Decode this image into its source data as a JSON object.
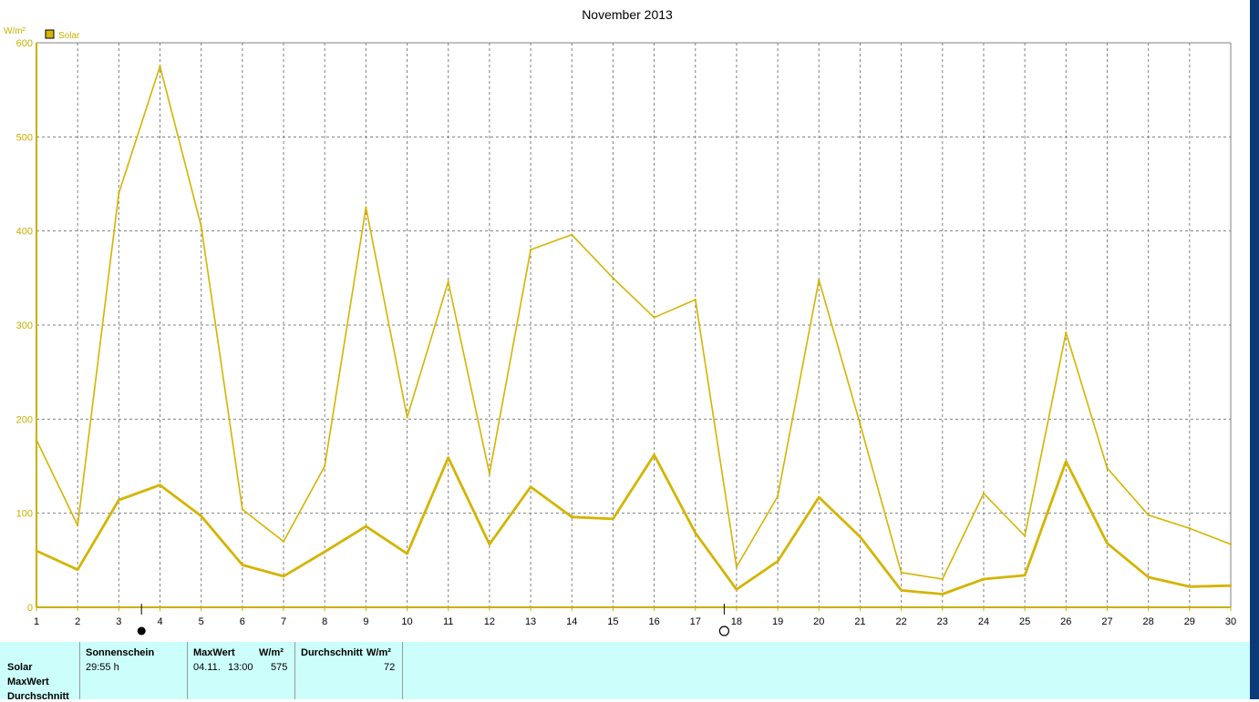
{
  "colors": {
    "series": "#d4b400",
    "axis": "#c8b000",
    "grid": "#808080",
    "summary_bg": "#ccfffb",
    "right_strip": "#0b3a78"
  },
  "chart_data": {
    "type": "line",
    "title": "November 2013",
    "ylabel": "W/m²",
    "legend": {
      "label": "Solar",
      "position": "top-left"
    },
    "ylim": [
      0,
      600
    ],
    "y_ticks": [
      "0",
      "100",
      "200",
      "300",
      "400",
      "500",
      "600"
    ],
    "x": [
      1,
      2,
      3,
      4,
      5,
      6,
      7,
      8,
      9,
      10,
      11,
      12,
      13,
      14,
      15,
      16,
      17,
      18,
      19,
      20,
      21,
      22,
      23,
      24,
      25,
      26,
      27,
      28,
      29,
      30
    ],
    "x_tick_labels": [
      "1",
      "2",
      "3",
      "4",
      "5",
      "6",
      "7",
      "8",
      "9",
      "10",
      "11",
      "12",
      "13",
      "14",
      "15",
      "16",
      "17",
      "18",
      "19",
      "20",
      "21",
      "22",
      "23",
      "24",
      "25",
      "26",
      "27",
      "28",
      "29",
      "30"
    ],
    "grid": true,
    "series": [
      {
        "name": "Solar",
        "values": [
          178,
          87,
          440,
          575,
          405,
          104,
          70,
          150,
          425,
          202,
          346,
          142,
          380,
          396,
          350,
          308,
          327,
          43,
          118,
          348,
          195,
          37,
          30,
          121,
          76,
          292,
          148,
          98,
          84,
          67
        ]
      },
      {
        "values": [
          60,
          40,
          114,
          130,
          97,
          45,
          33,
          59,
          86,
          57,
          159,
          67,
          128,
          96,
          94,
          162,
          79,
          19,
          49,
          117,
          75,
          18,
          14,
          30,
          34,
          155,
          68,
          32,
          22,
          23
        ]
      }
    ],
    "moon_phases": [
      {
        "symbol": "new-moon",
        "x": 3.55
      },
      {
        "symbol": "full-moon",
        "x": 17.7
      }
    ]
  },
  "summary": {
    "row_labels": [
      "Solar",
      "MaxWert",
      "Durchschnitt"
    ],
    "columns": [
      {
        "header": "Sonnenschein",
        "value": "29:55 h"
      },
      {
        "header": "MaxWert",
        "unit": "W/m²",
        "date": "04.11.",
        "time": "13:00",
        "value": "575"
      },
      {
        "header": "Durchschnitt",
        "unit": "W/m²",
        "value": "72"
      }
    ]
  }
}
